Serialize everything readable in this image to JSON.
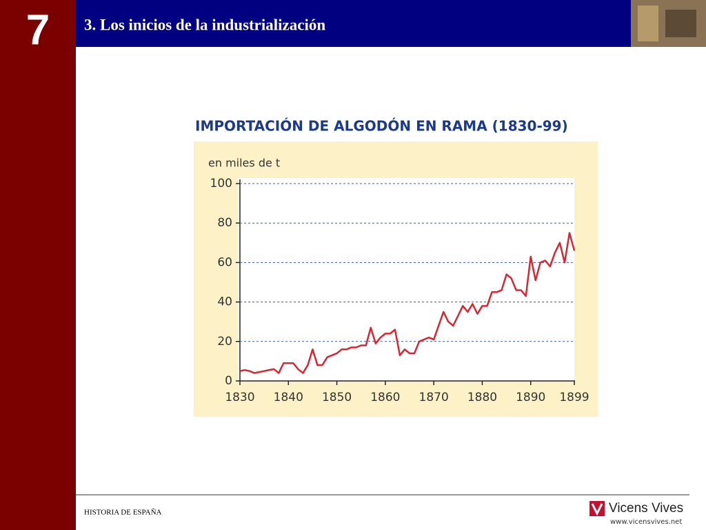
{
  "slide": {
    "number": "7",
    "title": "3. Los inicios de la industrialización",
    "footer": "HISTORIA DE ESPAÑA",
    "brand": "Vicens Vives",
    "url": "www.vicensvives.net"
  },
  "chart_data": {
    "type": "line",
    "title": "IMPORTACIÓN DE ALGODÓN EN RAMA (1830-99)",
    "y_label": "en miles de t",
    "x": [
      1830,
      1831,
      1832,
      1833,
      1834,
      1835,
      1836,
      1837,
      1838,
      1839,
      1840,
      1841,
      1842,
      1843,
      1844,
      1845,
      1846,
      1847,
      1848,
      1849,
      1850,
      1851,
      1852,
      1853,
      1854,
      1855,
      1856,
      1857,
      1858,
      1859,
      1860,
      1861,
      1862,
      1863,
      1864,
      1865,
      1866,
      1867,
      1868,
      1869,
      1870,
      1871,
      1872,
      1873,
      1874,
      1875,
      1876,
      1877,
      1878,
      1879,
      1880,
      1881,
      1882,
      1883,
      1884,
      1885,
      1886,
      1887,
      1888,
      1889,
      1890,
      1891,
      1892,
      1893,
      1894,
      1895,
      1896,
      1897,
      1898,
      1899
    ],
    "series": [
      {
        "name": "Importación",
        "color": "#d7262f",
        "values": [
          5,
          5.5,
          5,
          4,
          4.5,
          5,
          5.5,
          6,
          4,
          9,
          9,
          9,
          6,
          4,
          8,
          16,
          8,
          8,
          12,
          13,
          14,
          16,
          16,
          17,
          17,
          18,
          18,
          27,
          19,
          22,
          24,
          24,
          26,
          13,
          16,
          14,
          14,
          20,
          21,
          22,
          21,
          28,
          35,
          30,
          28,
          33,
          38,
          35,
          39,
          34,
          38,
          38,
          45,
          45,
          46,
          54,
          52,
          46,
          46,
          43,
          63,
          51,
          60,
          61,
          58,
          65,
          70,
          60,
          75,
          66
        ]
      }
    ],
    "xlim": [
      1830,
      1899
    ],
    "xticks": [
      1830,
      1840,
      1850,
      1860,
      1870,
      1880,
      1890,
      1899
    ],
    "ylim": [
      0,
      100
    ],
    "yticks": [
      0,
      20,
      40,
      60,
      80,
      100
    ],
    "grid": true
  }
}
